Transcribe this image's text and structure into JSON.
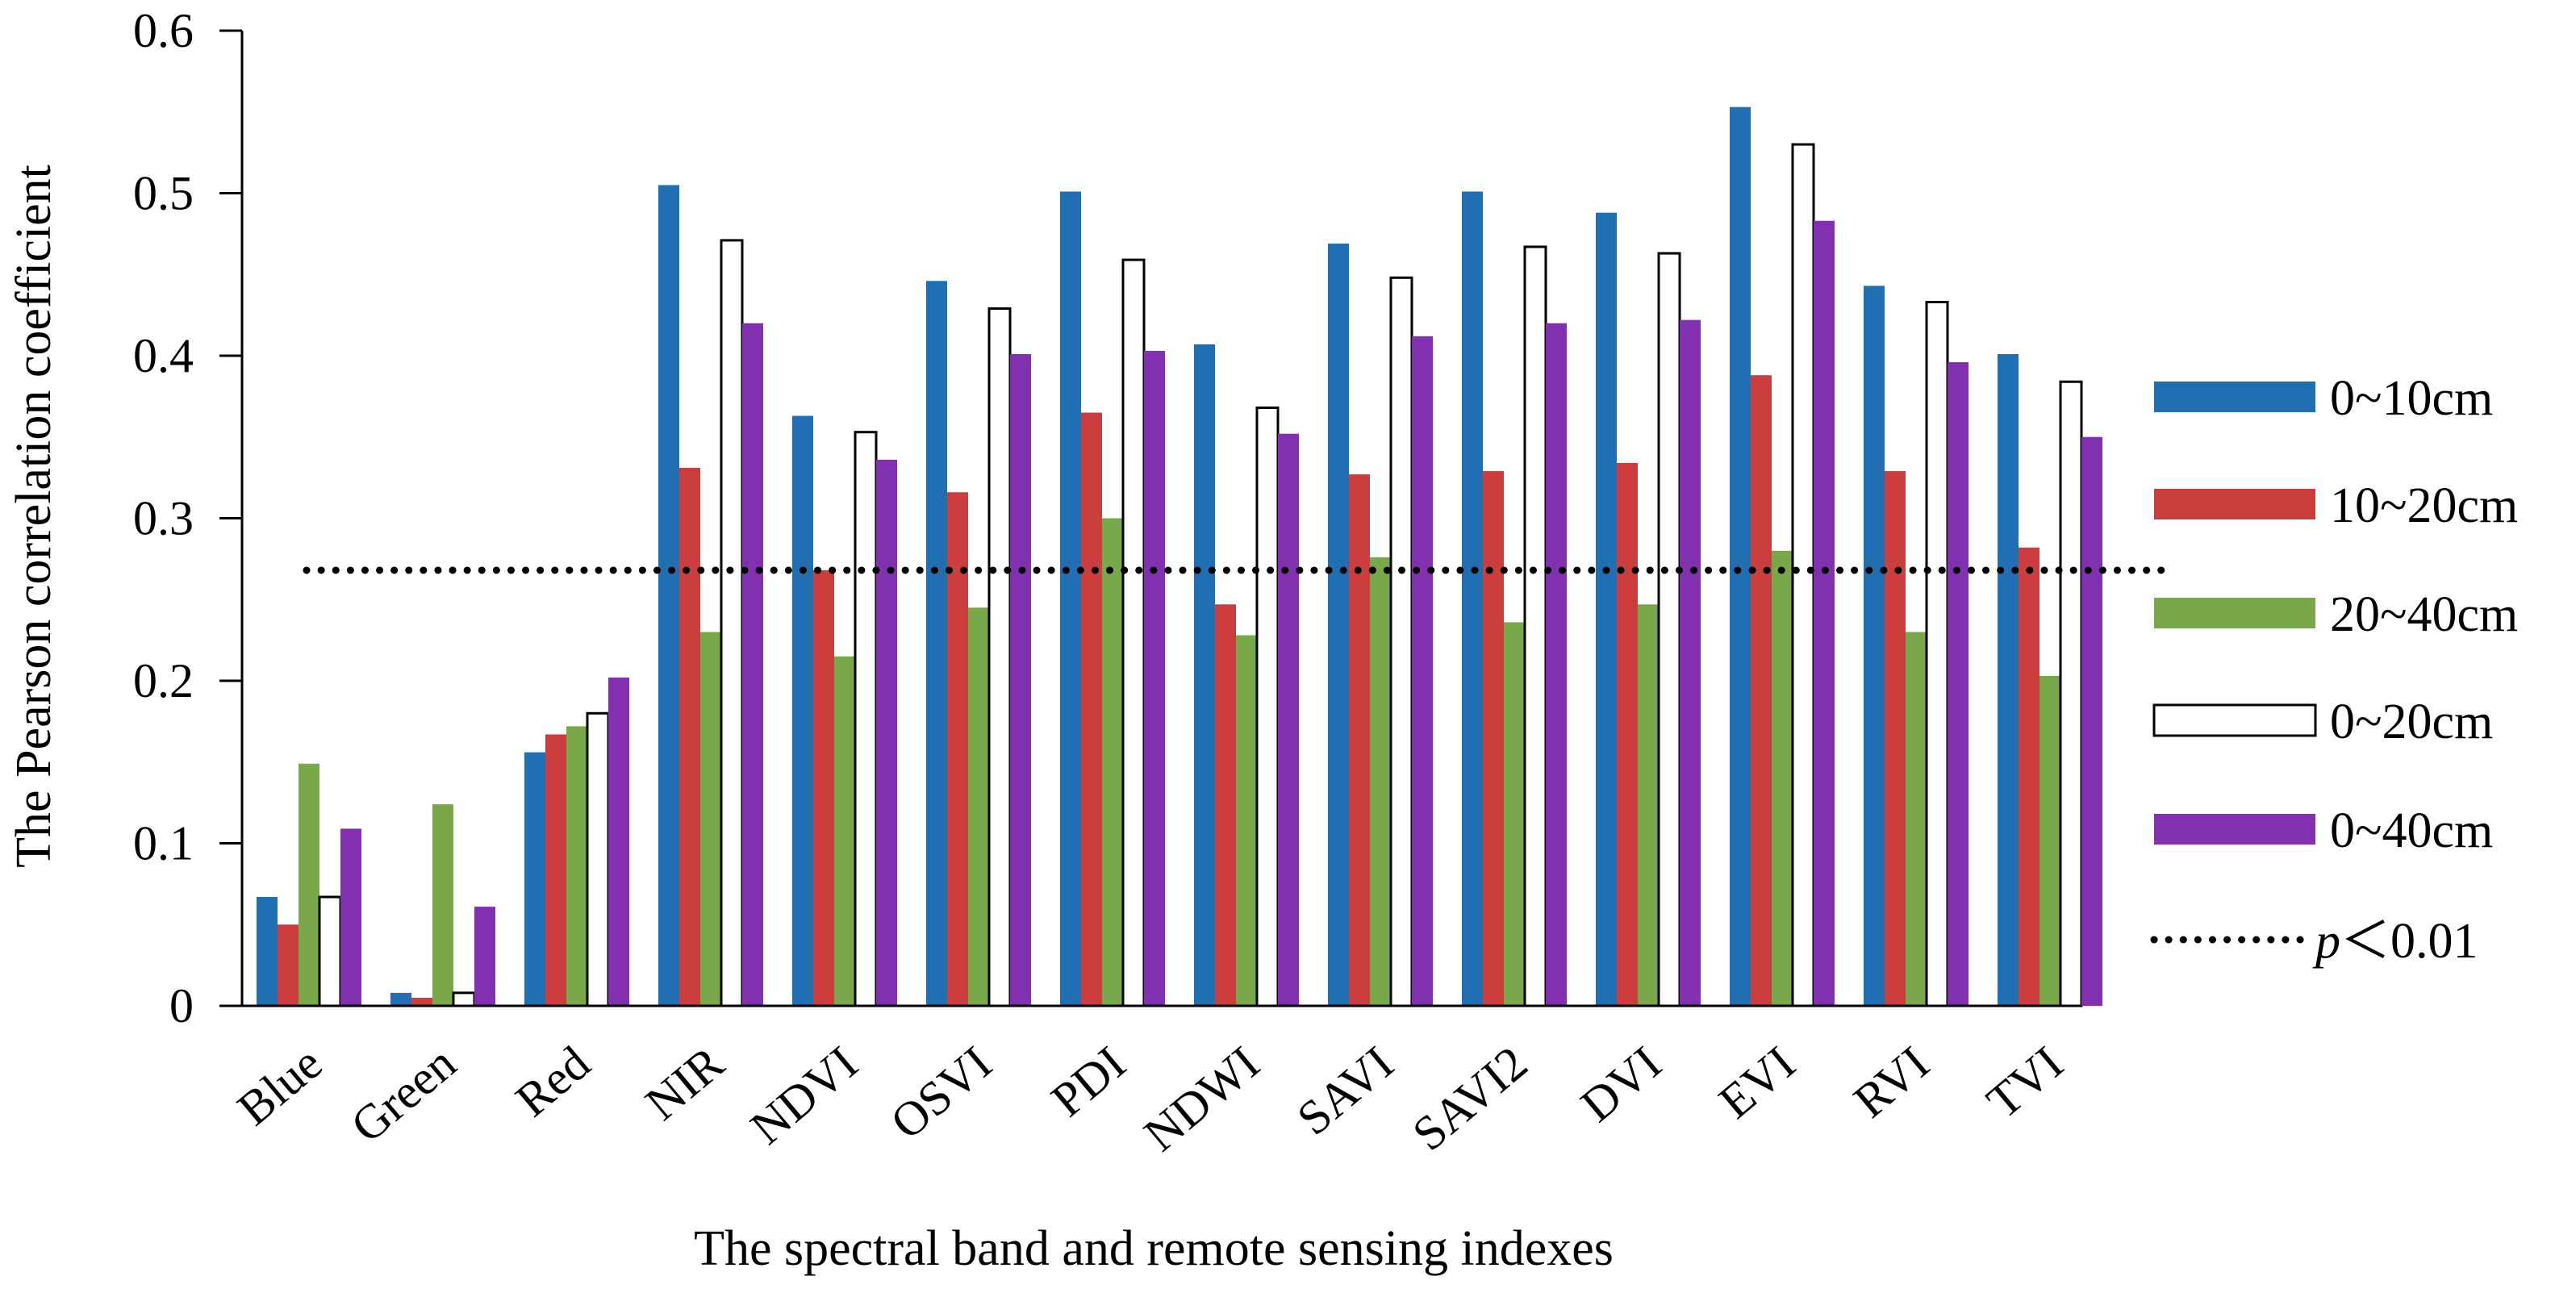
{
  "chart_data": {
    "type": "bar",
    "title": "",
    "xlabel": "The spectral band and remote sensing indexes",
    "ylabel": "The Pearson correlation coefficient",
    "ylim": [
      0,
      0.6
    ],
    "yticks": [
      "0",
      "0.1",
      "0.2",
      "0.3",
      "0.4",
      "0.5",
      "0.6"
    ],
    "ytick_values": [
      0,
      0.1,
      0.2,
      0.3,
      0.4,
      0.5,
      0.6
    ],
    "grid": false,
    "legend_position": "right",
    "categories": [
      "Blue",
      "Green",
      "Red",
      "NIR",
      "NDVI",
      "OSVI",
      "PDI",
      "NDWI",
      "SAVI",
      "SAVI2",
      "DVI",
      "EVI",
      "RVI",
      "TVI"
    ],
    "series": [
      {
        "name": "0~10cm",
        "color": "#1f6fb2",
        "values": [
          0.067,
          0.008,
          0.156,
          0.505,
          0.363,
          0.446,
          0.501,
          0.407,
          0.469,
          0.501,
          0.488,
          0.553,
          0.443,
          0.401
        ]
      },
      {
        "name": "10~20cm",
        "color": "#cc3e3e",
        "values": [
          0.05,
          0.005,
          0.167,
          0.331,
          0.268,
          0.316,
          0.365,
          0.247,
          0.327,
          0.329,
          0.334,
          0.388,
          0.329,
          0.282
        ]
      },
      {
        "name": "20~40cm",
        "color": "#79a84a",
        "values": [
          0.149,
          0.124,
          0.172,
          0.23,
          0.215,
          0.245,
          0.3,
          0.228,
          0.276,
          0.236,
          0.247,
          0.28,
          0.23,
          0.203
        ]
      },
      {
        "name": "0~20cm",
        "color": "#ffffff",
        "values": [
          0.067,
          0.008,
          0.18,
          0.471,
          0.353,
          0.429,
          0.459,
          0.368,
          0.448,
          0.467,
          0.463,
          0.53,
          0.433,
          0.384
        ]
      },
      {
        "name": "0~40cm",
        "color": "#8131b0",
        "values": [
          0.109,
          0.061,
          0.202,
          0.42,
          0.336,
          0.401,
          0.403,
          0.352,
          0.412,
          0.42,
          0.422,
          0.483,
          0.396,
          0.35
        ]
      }
    ],
    "reference_line": {
      "label_prefix": "p",
      "label_rest": "＜0.01",
      "value": 0.268,
      "style": "dotted"
    }
  }
}
